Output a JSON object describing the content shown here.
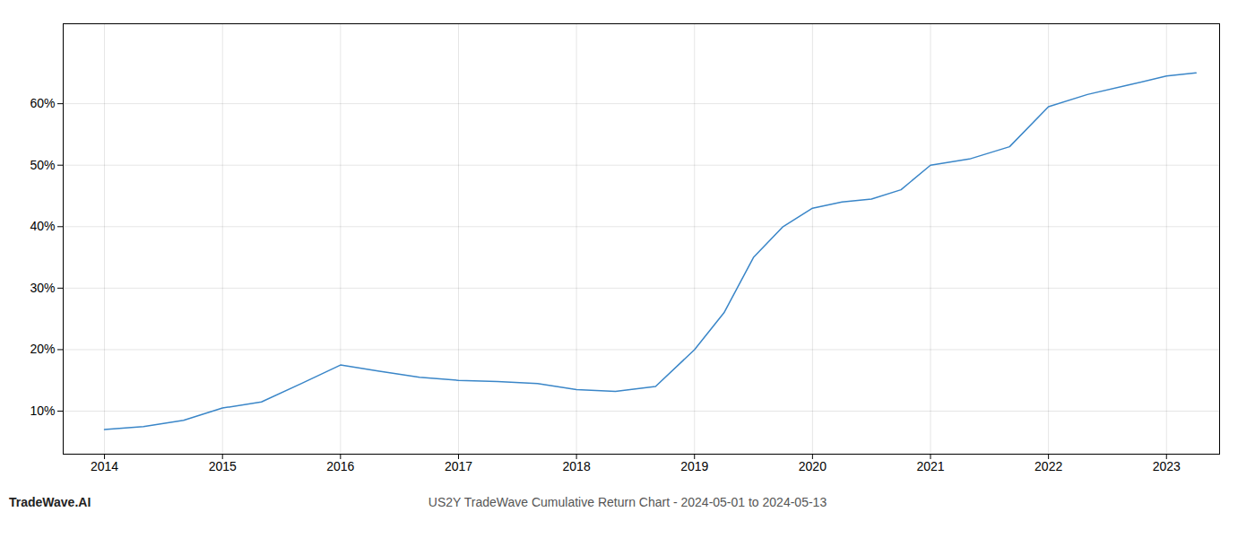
{
  "chart_data": {
    "type": "line",
    "title": "US2Y TradeWave Cumulative Return Chart - 2024-05-01 to 2024-05-13",
    "annotations": [
      "TradeWave.AI"
    ],
    "x": [
      2014,
      2014.33,
      2014.67,
      2015,
      2015.33,
      2015.67,
      2016,
      2016.33,
      2016.67,
      2017,
      2017.33,
      2017.67,
      2018,
      2018.33,
      2018.67,
      2019,
      2019.25,
      2019.5,
      2019.75,
      2020,
      2020.25,
      2020.5,
      2020.75,
      2021,
      2021.33,
      2021.67,
      2022,
      2022.33,
      2022.67,
      2023,
      2023.25
    ],
    "values": [
      7.0,
      7.5,
      8.5,
      10.5,
      11.5,
      14.5,
      17.5,
      16.5,
      15.5,
      15.0,
      14.8,
      14.5,
      13.5,
      13.2,
      14.0,
      20.0,
      26.0,
      35.0,
      40.0,
      43.0,
      44.0,
      44.5,
      46.0,
      50.0,
      51.0,
      53.0,
      59.5,
      61.5,
      63.0,
      64.5,
      65.0
    ],
    "color": "#3a86c8",
    "xlim": [
      2013.65,
      2023.45
    ],
    "xticks": [
      2014,
      2015,
      2016,
      2017,
      2018,
      2019,
      2020,
      2021,
      2022,
      2023
    ],
    "ylim": [
      3,
      73
    ],
    "yticks": [
      {
        "value": 10,
        "label": "10%"
      },
      {
        "value": 20,
        "label": "20%"
      },
      {
        "value": 30,
        "label": "30%"
      },
      {
        "value": 40,
        "label": "40%"
      },
      {
        "value": 50,
        "label": "50%"
      },
      {
        "value": 60,
        "label": "60%"
      }
    ],
    "grid": true
  }
}
